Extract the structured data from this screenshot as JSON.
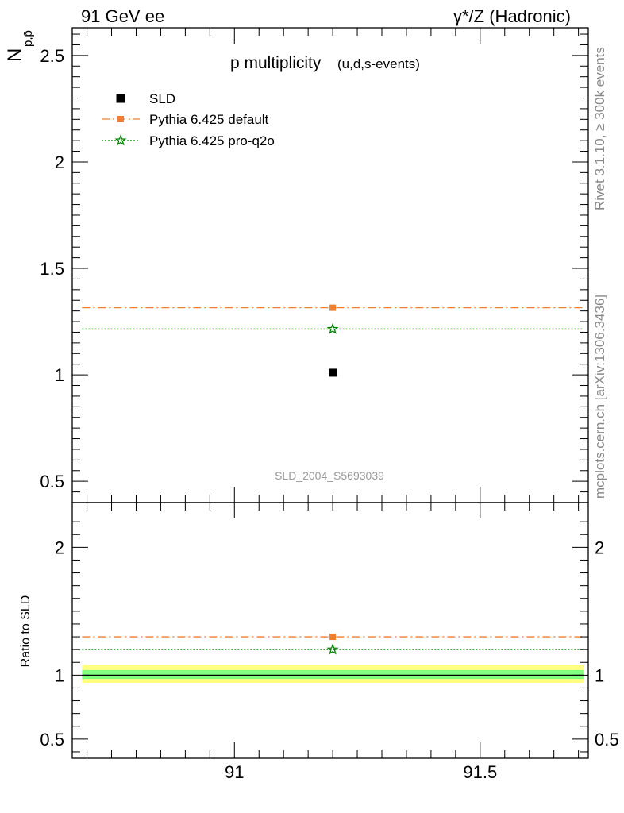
{
  "header": {
    "left": "91 GeV ee",
    "right": "γ*/Z (Hadronic)"
  },
  "side_labels": {
    "rivet": "Rivet 3.1.10, ≥ 300k events",
    "source": "mcplots.cern.ch [arXiv:1306.3436]"
  },
  "colors": {
    "data": "#000000",
    "pythia_default": "#f07f30",
    "pythia_proq2o": "#008000",
    "band_outer": "#ffff80",
    "band_inner": "#80ff80"
  },
  "chart_data": [
    {
      "type": "scatter",
      "panel": "main",
      "title": "p multiplicity",
      "subtitle": "(u,d,s-events)",
      "ylabel": "N_{p,p̄}",
      "analysis_id": "SLD_2004_S5693039",
      "xlim": [
        90.67,
        91.72
      ],
      "ylim": [
        0.4,
        2.63
      ],
      "yticks": [
        0.5,
        1,
        1.5,
        2,
        2.5
      ],
      "ytick_labels": [
        "0.5",
        "1",
        "1.5",
        "2",
        "2.5"
      ],
      "legend_position": "top-left",
      "series": [
        {
          "name": "SLD",
          "style": "marker",
          "x": [
            91.2
          ],
          "y": [
            1.01
          ]
        },
        {
          "name": "Pythia 6.425 default",
          "style": "dashdot",
          "x": [
            91.2
          ],
          "y": [
            1.315
          ],
          "x_range": [
            90.69,
            91.71
          ]
        },
        {
          "name": "Pythia 6.425 pro-q2o",
          "style": "dotted",
          "x": [
            91.2
          ],
          "y": [
            1.215
          ],
          "x_range": [
            90.69,
            91.71
          ]
        }
      ]
    },
    {
      "type": "line",
      "panel": "ratio",
      "ylabel": "Ratio to SLD",
      "xlim": [
        90.67,
        91.72
      ],
      "ylim": [
        0.35,
        2.35
      ],
      "xticks": [
        91,
        91.5
      ],
      "xtick_labels": [
        "91",
        "91.5"
      ],
      "yticks": [
        0.5,
        1,
        2
      ],
      "ytick_labels": [
        "0.5",
        "1",
        "2"
      ],
      "reference_band": {
        "center": 1.0,
        "inner": [
          0.97,
          1.04
        ],
        "outer": [
          0.94,
          1.08
        ]
      },
      "series": [
        {
          "name": "Pythia 6.425 default",
          "style": "dashdot",
          "x": [
            91.2
          ],
          "y": [
            1.3
          ]
        },
        {
          "name": "Pythia 6.425 pro-q2o",
          "style": "dotted",
          "x": [
            91.2
          ],
          "y": [
            1.2
          ]
        }
      ]
    }
  ]
}
